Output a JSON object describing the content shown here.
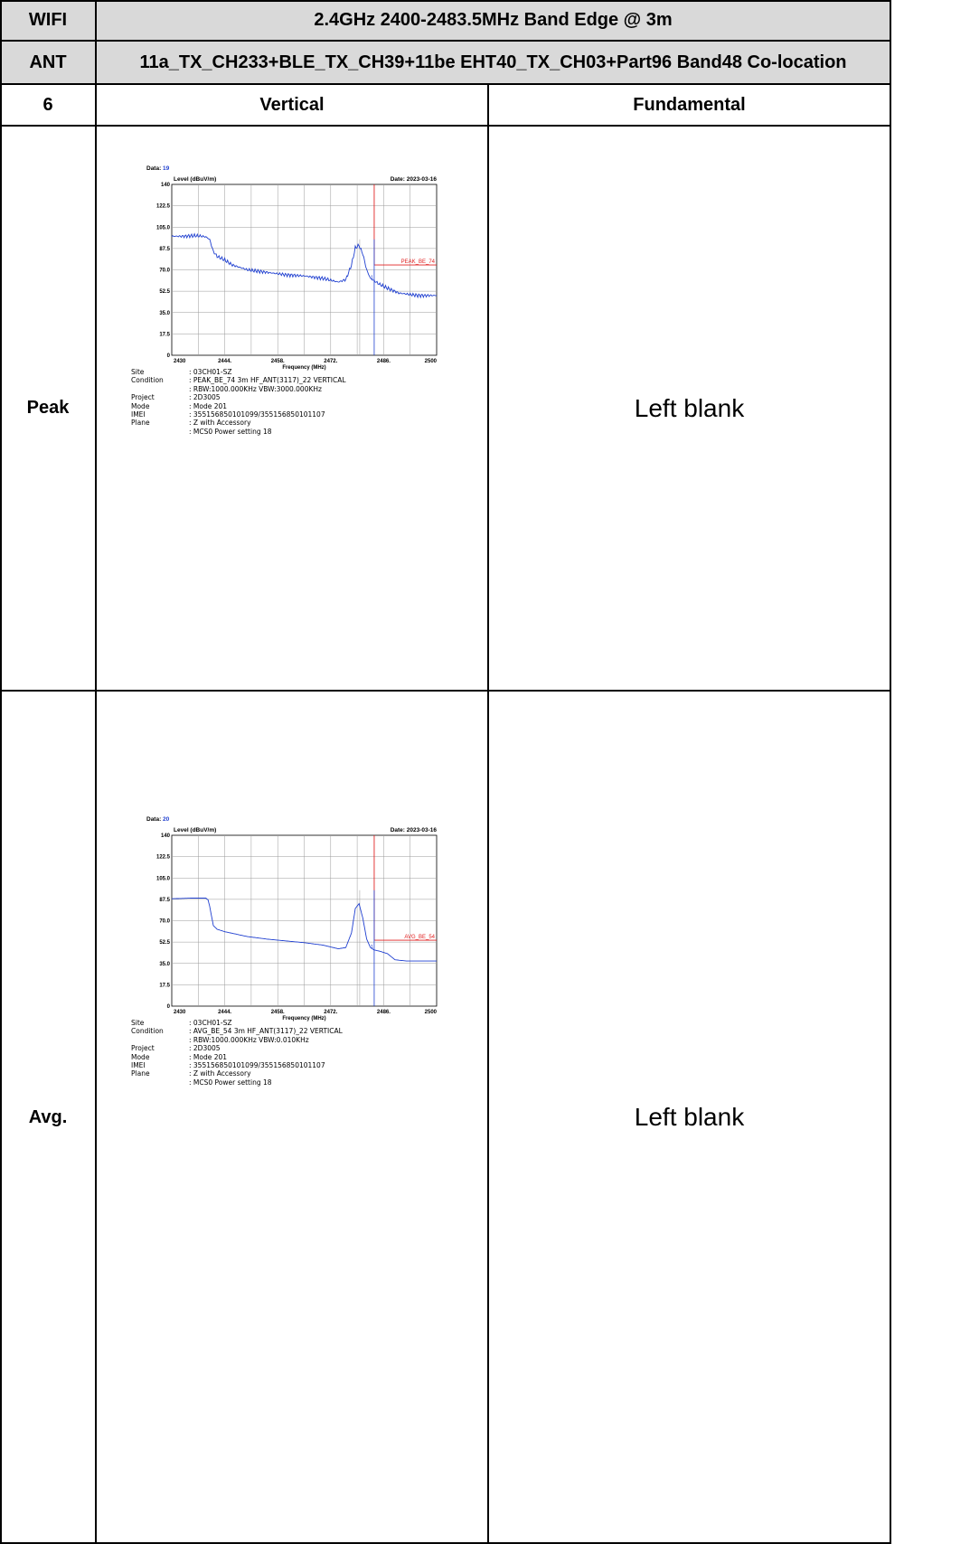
{
  "header": {
    "r1_label": "WIFI",
    "r1_title": "2.4GHz 2400-2483.5MHz Band Edge @ 3m",
    "r2_label": "ANT",
    "r2_title": "11a_TX_CH233+BLE_TX_CH39+11be EHT40_TX_CH03+Part96 Band48 Co-location",
    "r3_label": "6",
    "r3_col2": "Vertical",
    "r3_col3": "Fundamental"
  },
  "rows": {
    "peak_label": "Peak",
    "avg_label": "Avg.",
    "blank_text": "Left blank"
  },
  "plots": [
    {
      "data_label": "Data:",
      "data_no": "19",
      "date": "Date: 2023-03-16",
      "ylabel": "Level (dBuV/m)",
      "xlabel": "Frequency (MHz)",
      "yticks": [
        "140",
        "122.5",
        "105.0",
        "87.5",
        "70.0",
        "52.5",
        "35.0",
        "17.5",
        "0"
      ],
      "xticks": [
        "2430",
        "2444.",
        "2458.",
        "2472.",
        "2486.",
        "2500"
      ],
      "limit_label": "PEAK_BE_74",
      "marker_label": "1",
      "info": [
        {
          "k": "Site",
          "v": ": 03CH01-SZ"
        },
        {
          "k": "Condition",
          "v": ": PEAK_BE_74 3m HF_ANT(3117)_22 VERTICAL"
        },
        {
          "k": "",
          "v": ": RBW:1000.000KHz VBW:3000.000KHz"
        },
        {
          "k": "Project",
          "v": ": 2D3005"
        },
        {
          "k": "Mode",
          "v": ": Mode 201"
        },
        {
          "k": "IMEI",
          "v": ": 355156850101099/355156850101107"
        },
        {
          "k": "Plane",
          "v": ": Z with Accessory"
        },
        {
          "k": "",
          "v": ": MCS0 Power setting 18"
        }
      ]
    },
    {
      "data_label": "Data:",
      "data_no": "20",
      "date": "Date: 2023-03-16",
      "ylabel": "Level (dBuV/m)",
      "xlabel": "Frequency (MHz)",
      "yticks": [
        "140",
        "122.5",
        "105.0",
        "87.5",
        "70.0",
        "52.5",
        "35.0",
        "17.5",
        "0"
      ],
      "xticks": [
        "2430",
        "2444.",
        "2458.",
        "2472.",
        "2486.",
        "2500"
      ],
      "limit_label": "AVG_BE_54",
      "marker_label": "1",
      "info": [
        {
          "k": "Site",
          "v": ": 03CH01-SZ"
        },
        {
          "k": "Condition",
          "v": ": AVG_BE_54 3m HF_ANT(3117)_22 VERTICAL"
        },
        {
          "k": "",
          "v": ": RBW:1000.000KHz VBW:0.010KHz"
        },
        {
          "k": "Project",
          "v": ": 2D3005"
        },
        {
          "k": "Mode",
          "v": ": Mode 201"
        },
        {
          "k": "IMEI",
          "v": ": 355156850101099/355156850101107"
        },
        {
          "k": "Plane",
          "v": ": Z with Accessory"
        },
        {
          "k": "",
          "v": ": MCS0 Power setting 18"
        }
      ]
    }
  ],
  "chart_data": [
    {
      "type": "line",
      "title": "",
      "xlabel": "Frequency (MHz)",
      "ylabel": "Level (dBuV/m)",
      "xlim": [
        2430,
        2500
      ],
      "ylim": [
        0,
        140
      ],
      "grid": true,
      "limit_line": {
        "name": "PEAK_BE_74",
        "start_x": 2483.5,
        "y": 74
      },
      "marker": {
        "name": "1",
        "x": 2483.5
      },
      "series": [
        {
          "color": "#1f3fd0",
          "x": [
            2430,
            2433,
            2436,
            2438,
            2439,
            2440,
            2441,
            2442,
            2444,
            2446,
            2450,
            2455,
            2460,
            2465,
            2470,
            2474,
            2476,
            2477.5,
            2478.5,
            2479.5,
            2480.5,
            2481.5,
            2482.5,
            2483.5,
            2485,
            2487,
            2490,
            2495,
            2500
          ],
          "y": [
            97.5,
            97.5,
            98,
            97.5,
            97,
            95,
            85,
            81,
            78,
            74,
            70,
            68,
            66,
            65,
            63,
            60,
            62,
            74,
            88,
            90,
            83,
            70,
            63,
            61,
            58,
            55,
            51,
            49,
            49
          ]
        }
      ]
    },
    {
      "type": "line",
      "title": "",
      "xlabel": "Frequency (MHz)",
      "ylabel": "Level (dBuV/m)",
      "xlim": [
        2430,
        2500
      ],
      "ylim": [
        0,
        140
      ],
      "grid": true,
      "limit_line": {
        "name": "AVG_BE_54",
        "start_x": 2483.5,
        "y": 54
      },
      "marker": {
        "name": "1",
        "x": 2483.5
      },
      "series": [
        {
          "color": "#1f3fd0",
          "x": [
            2430,
            2435,
            2439,
            2439.6,
            2440,
            2441,
            2442,
            2444,
            2450,
            2455,
            2460,
            2465,
            2470,
            2474,
            2476,
            2477.5,
            2478.5,
            2479.5,
            2480.5,
            2481.5,
            2482.5,
            2483.5,
            2485,
            2487,
            2489,
            2492,
            2500
          ],
          "y": [
            88,
            88.5,
            88.5,
            87,
            82,
            66,
            63,
            61,
            57,
            55,
            53.5,
            52,
            50,
            47,
            48,
            60,
            80,
            84,
            72,
            55,
            48,
            46,
            45,
            43,
            38,
            37,
            37
          ]
        }
      ]
    }
  ]
}
